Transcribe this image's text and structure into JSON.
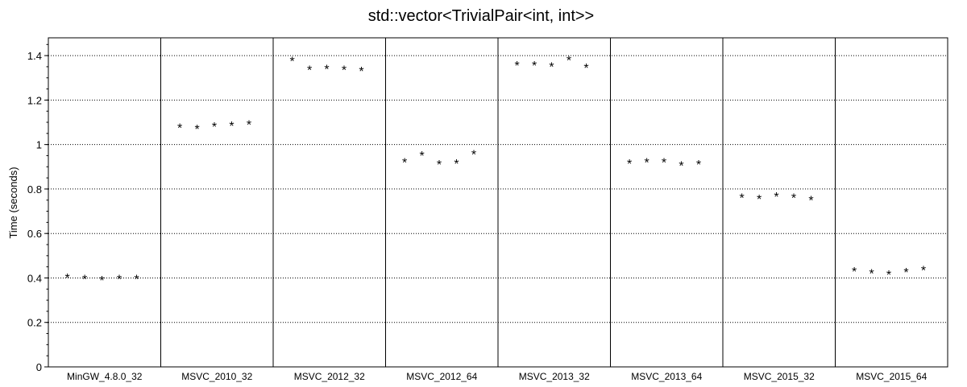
{
  "chart_data": {
    "type": "scatter",
    "title": "std::vector<TrivialPair<int, int>>",
    "ylabel": "Time (seconds)",
    "xlabel": "",
    "ylim": [
      0,
      1.48
    ],
    "yticks": [
      0,
      0.2,
      0.4,
      0.6,
      0.8,
      1,
      1.2,
      1.4
    ],
    "ytick_labels": [
      "0",
      "0.2",
      "0.4",
      "0.6",
      "0.8",
      "1",
      "1.2",
      "1.4"
    ],
    "grid": "horizontal-dotted",
    "marker": "*",
    "categories": [
      "MinGW_4.8.0_32",
      "MSVC_2010_32",
      "MSVC_2012_32",
      "MSVC_2012_64",
      "MSVC_2013_32",
      "MSVC_2013_64",
      "MSVC_2015_32",
      "MSVC_2015_64"
    ],
    "groups": [
      [
        0.405,
        0.4,
        0.395,
        0.4,
        0.4
      ],
      [
        1.08,
        1.075,
        1.085,
        1.09,
        1.095
      ],
      [
        1.38,
        1.34,
        1.345,
        1.34,
        1.335
      ],
      [
        0.925,
        0.955,
        0.915,
        0.92,
        0.96
      ],
      [
        1.36,
        1.36,
        1.355,
        1.385,
        1.35
      ],
      [
        0.92,
        0.925,
        0.925,
        0.91,
        0.915
      ],
      [
        0.765,
        0.76,
        0.77,
        0.765,
        0.755
      ],
      [
        0.435,
        0.425,
        0.42,
        0.43,
        0.44
      ]
    ]
  }
}
